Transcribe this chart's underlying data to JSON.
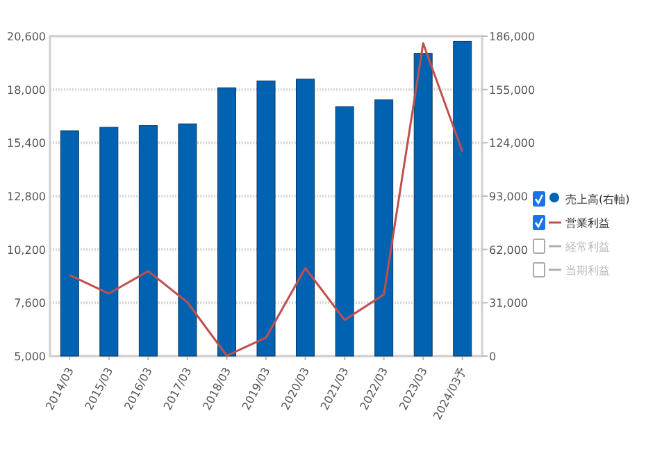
{
  "chart_data": {
    "type": "bar",
    "categories": [
      "2014/03",
      "2015/03",
      "2016/03",
      "2017/03",
      "2018/03",
      "2019/03",
      "2020/03",
      "2021/03",
      "2022/03",
      "2023/03",
      "2024/03予"
    ],
    "series": [
      {
        "name": "売上高(右軸)",
        "axis": "y2",
        "color": "#0062b1",
        "values": [
          131000,
          133000,
          134000,
          135000,
          156000,
          160000,
          161000,
          145000,
          149000,
          176000,
          183000
        ]
      },
      {
        "name": "営業利益",
        "type": "line",
        "color": "#c0504d",
        "values": [
          8950,
          8050,
          9140,
          7620,
          5020,
          5900,
          9290,
          6760,
          8000,
          20250,
          14970
        ]
      },
      {
        "name": "経常利益",
        "type": "line",
        "color": "#b0b0b0",
        "values": [
          null,
          null,
          null,
          null,
          null,
          null,
          null,
          null,
          null,
          null,
          null
        ]
      },
      {
        "name": "当期利益",
        "type": "line",
        "color": "#b0b0b0",
        "values": [
          null,
          null,
          null,
          null,
          null,
          null,
          null,
          null,
          null,
          null,
          null
        ]
      }
    ],
    "ylim": [
      5000,
      20600
    ],
    "yticks": [
      {
        "value": 5000,
        "label": "5,000"
      },
      {
        "value": 7600,
        "label": "7,600"
      },
      {
        "value": 10200,
        "label": "10,200"
      },
      {
        "value": 12800,
        "label": "12,800"
      },
      {
        "value": 15400,
        "label": "15,400"
      },
      {
        "value": 18000,
        "label": "18,000"
      },
      {
        "value": 20600,
        "label": "20,600"
      }
    ],
    "y2lim": [
      0,
      186000
    ],
    "y2ticks": [
      0,
      {
        "value": 31000,
        "label": "31,000"
      },
      {
        "value": 62000,
        "label": "62,000"
      },
      {
        "value": 93000,
        "label": "93,000"
      },
      {
        "value": 124000,
        "label": "124,000"
      },
      {
        "value": 155000,
        "label": "155,000"
      },
      {
        "value": 186000,
        "label": "186,000"
      }
    ],
    "grid": "y",
    "legend": "right"
  }
}
